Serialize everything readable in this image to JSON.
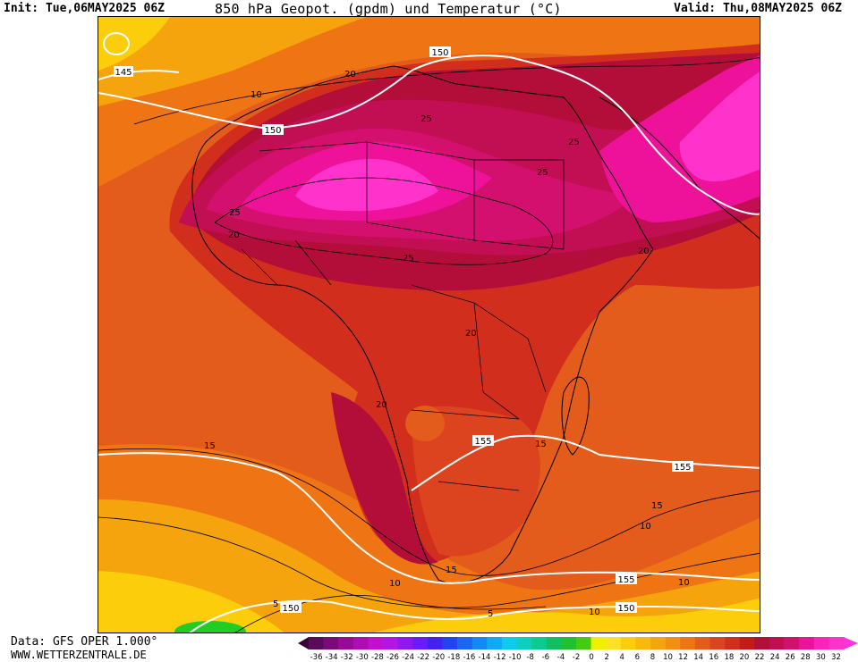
{
  "header": {
    "init": "Init: Tue,06MAY2025 06Z",
    "title": "850 hPa Geopot. (gpdm) und Temperatur (°C)",
    "valid": "Valid: Thu,08MAY2025 06Z"
  },
  "footer": {
    "source": "Data: GFS OPER 1.000°",
    "site": "WWW.WETTERZENTRALE.DE"
  },
  "colors": {
    "t32": "#ff33cc",
    "t30": "#ff22bb",
    "t28": "#ee1199",
    "t26": "#d4106e",
    "t24": "#c20e52",
    "t22": "#b30d3a",
    "t20": "#c41a1a",
    "t18": "#d12e1e",
    "t16": "#dc4420",
    "t14": "#e45c1c",
    "t12": "#ee7414",
    "t10": "#f28e10",
    "t8": "#f6a40e",
    "t6": "#f8b80c",
    "t4": "#fbcd0a",
    "t2": "#fde028",
    "t0": "#eef000",
    "green": "#22cc22",
    "geopot": "#ffffff",
    "isotherm": "#000000"
  },
  "map_labels": {
    "geopotential": [
      "145",
      "150",
      "150",
      "155",
      "155",
      "155",
      "150",
      "150",
      "150"
    ],
    "temperature": [
      "10",
      "20",
      "25",
      "25",
      "25",
      "25",
      "25",
      "20",
      "20",
      "20",
      "20",
      "20",
      "15",
      "15",
      "15",
      "15",
      "15",
      "15",
      "10",
      "10",
      "10",
      "10",
      "5",
      "5"
    ]
  },
  "legend": {
    "ticks": [
      "-36",
      "-34",
      "-32",
      "-30",
      "-28",
      "-26",
      "-24",
      "-22",
      "-20",
      "-18",
      "-16",
      "-14",
      "-12",
      "-10",
      "-8",
      "-6",
      "-4",
      "-2",
      "0",
      "2",
      "4",
      "6",
      "8",
      "10",
      "12",
      "14",
      "16",
      "18",
      "20",
      "22",
      "24",
      "26",
      "28",
      "30",
      "32"
    ],
    "swatches": [
      "#5a0a5a",
      "#7a0a7a",
      "#990a99",
      "#b00cb4",
      "#c40ed2",
      "#b414e6",
      "#8f18f2",
      "#6a1cf6",
      "#4422ee",
      "#2244ee",
      "#1a66f2",
      "#1488f4",
      "#10aaf4",
      "#0cccee",
      "#0ad0c0",
      "#0acc90",
      "#10c060",
      "#20c030",
      "#44cc10",
      "#eef000",
      "#fde028",
      "#fbcd0a",
      "#f8b80c",
      "#f6a40e",
      "#f28e10",
      "#ee7414",
      "#e45c1c",
      "#dc4420",
      "#d12e1e",
      "#c41a1a",
      "#b30d3a",
      "#c20e52",
      "#d4106e",
      "#ee1199",
      "#ff22bb",
      "#ff33cc"
    ]
  }
}
